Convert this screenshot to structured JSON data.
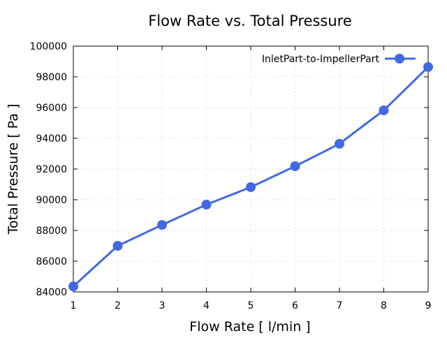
{
  "chart_data": {
    "type": "line",
    "title": "Flow Rate vs. Total Pressure",
    "xlabel": "Flow Rate [ l/min ]",
    "ylabel": "Total Pressure [ Pa ]",
    "xlim": [
      1,
      9
    ],
    "ylim": [
      84000,
      100000
    ],
    "xticks": [
      "1",
      "2",
      "3",
      "4",
      "5",
      "6",
      "7",
      "8",
      "9"
    ],
    "yticks": [
      "84000",
      "86000",
      "88000",
      "90000",
      "92000",
      "94000",
      "96000",
      "98000",
      "100000"
    ],
    "grid": true,
    "legend_position": "top-right",
    "series": [
      {
        "name": "InletPart-to-ImpellerPart",
        "color": "#4169e1",
        "x": [
          1,
          2,
          3,
          4,
          5,
          6,
          7,
          8,
          9
        ],
        "y": [
          84360,
          87000,
          88360,
          89680,
          90820,
          92180,
          93640,
          95820,
          98640
        ]
      }
    ]
  }
}
